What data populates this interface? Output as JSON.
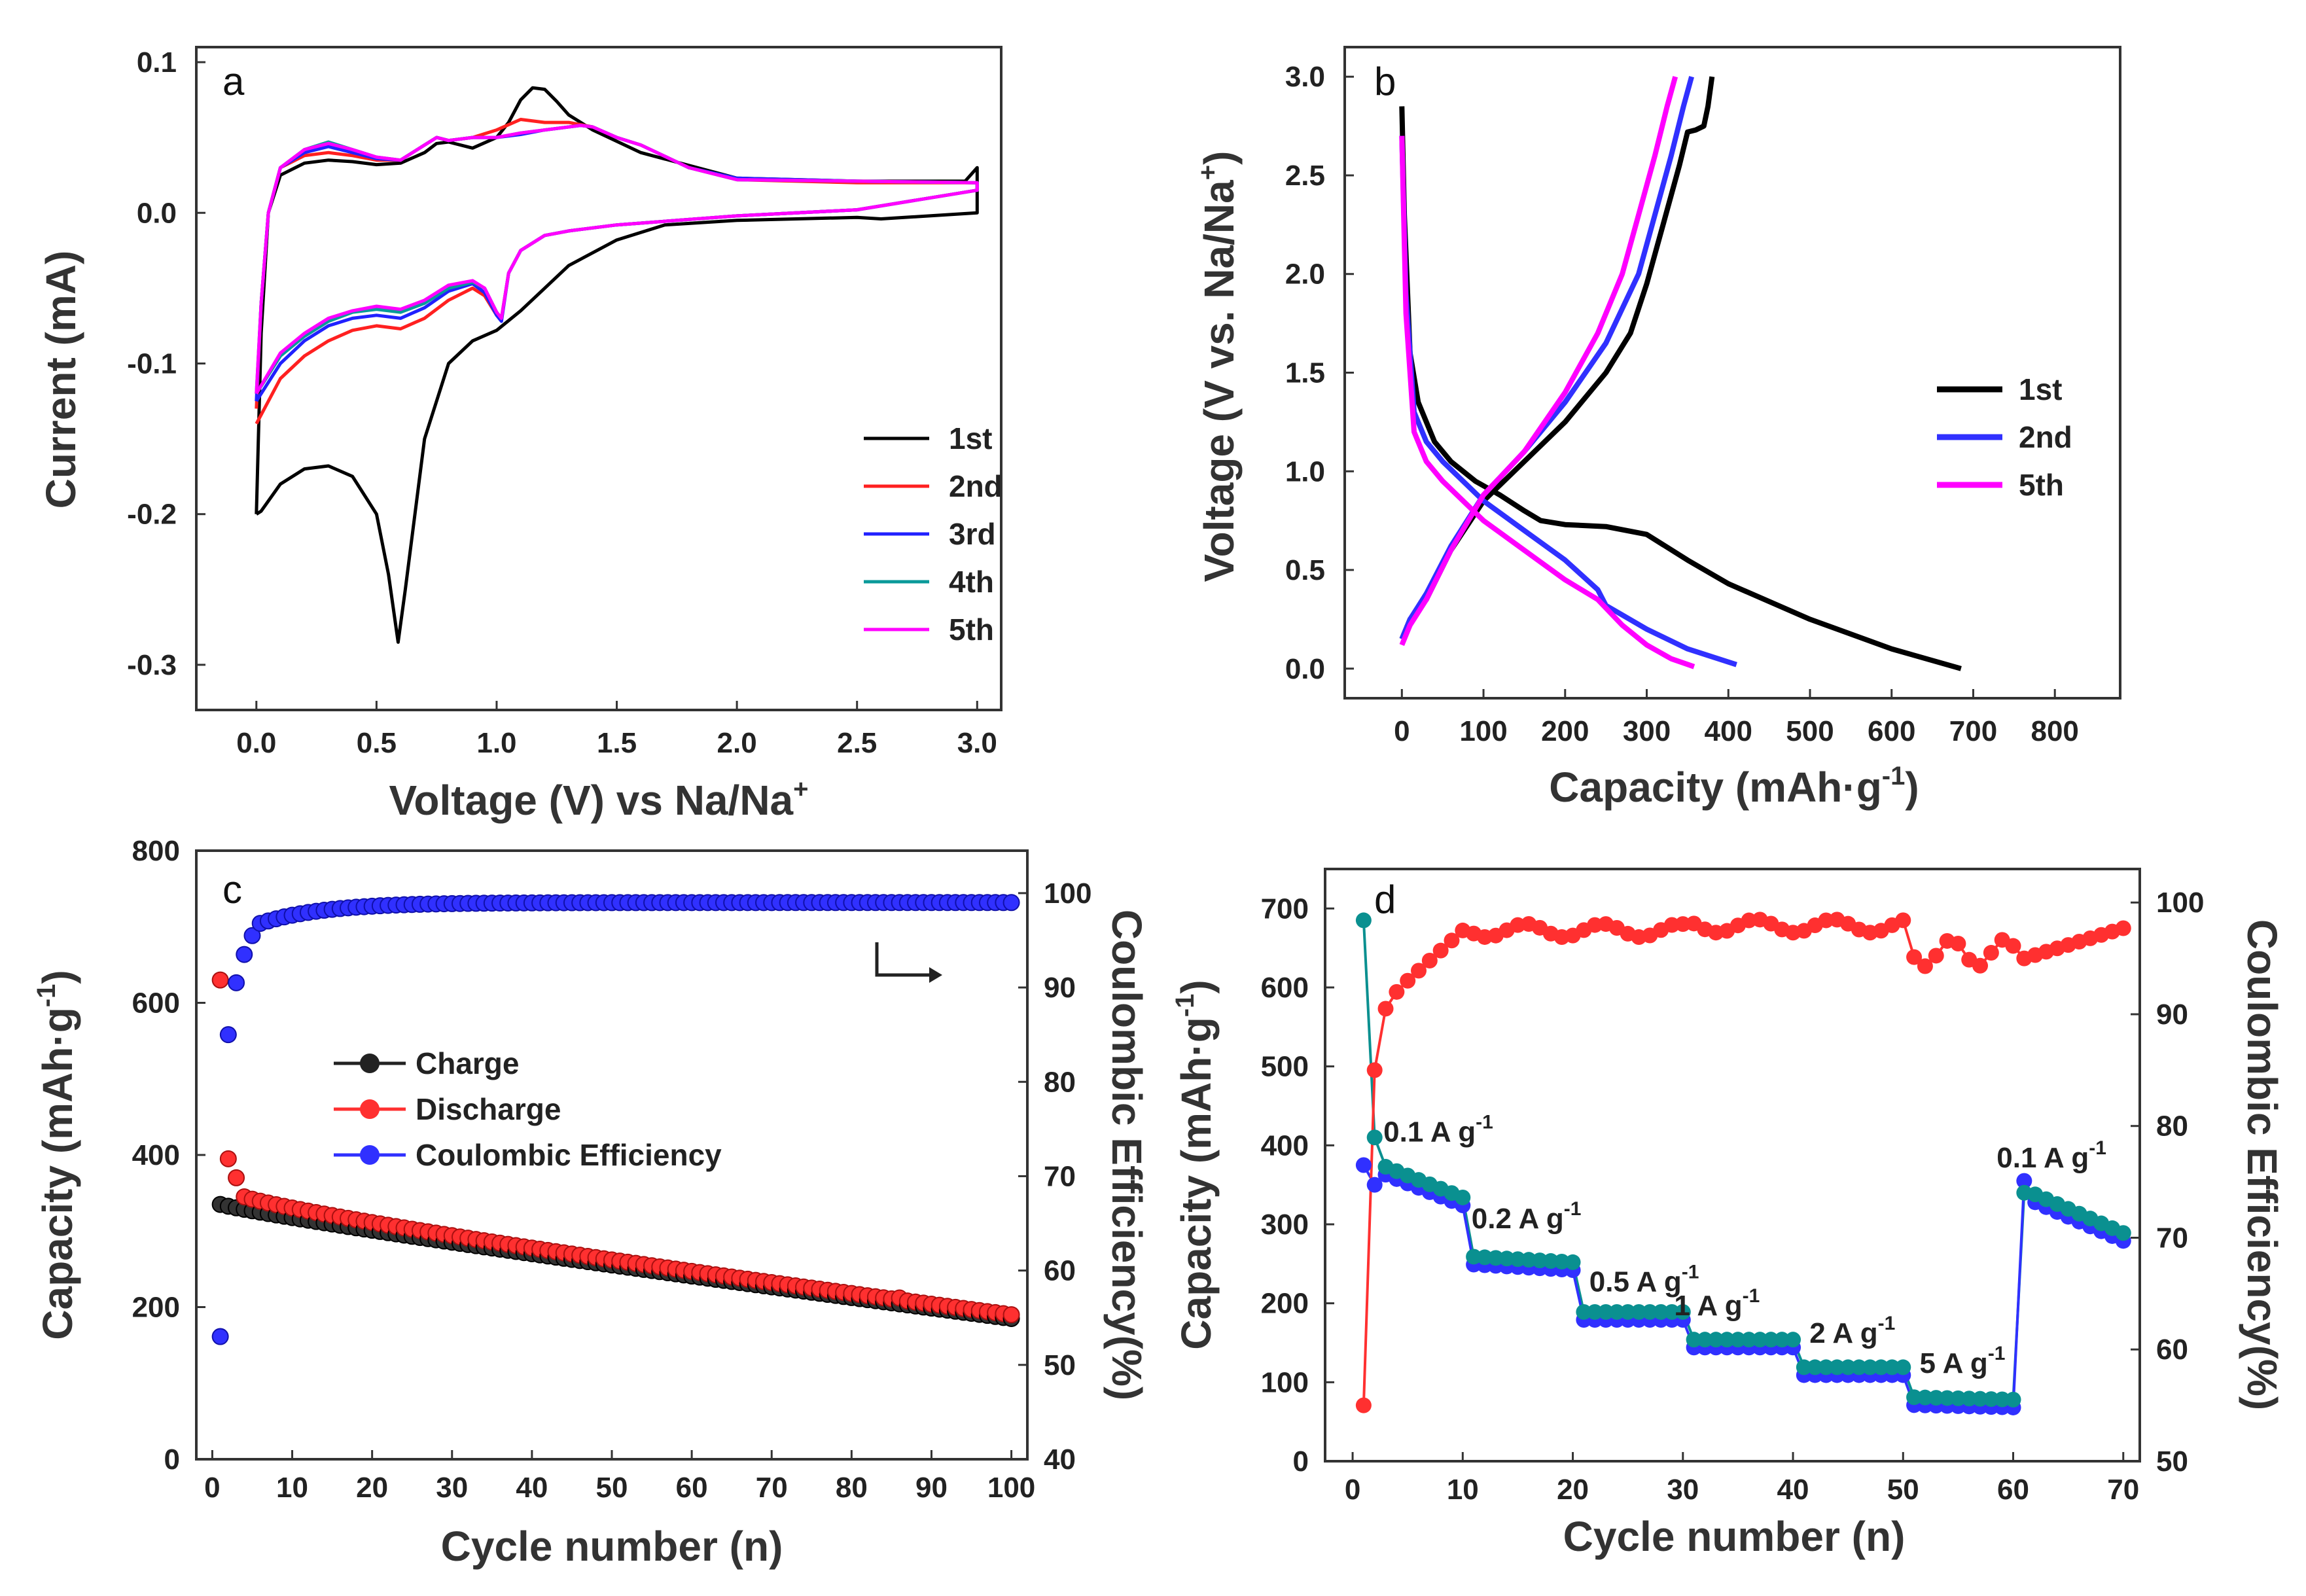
{
  "chart_data": [
    {
      "id": "a",
      "type": "line",
      "panel_label": "a",
      "xlabel": "Voltage (V) vs Na/Na",
      "xlabel_sup": "+",
      "ylabel": "Current (mA)",
      "xlim": [
        -0.25,
        3.1
      ],
      "ylim": [
        -0.33,
        0.11
      ],
      "xticks": [
        "0.0",
        "0.5",
        "1.0",
        "1.5",
        "2.0",
        "2.5",
        "3.0"
      ],
      "yticks": [
        "0.1",
        "0.0",
        "-0.1",
        "-0.2",
        "-0.3"
      ],
      "legend_position": "lower-right",
      "series": [
        {
          "name": "1st",
          "color": "#000000",
          "x": [
            0.0,
            0.02,
            0.1,
            0.2,
            0.3,
            0.4,
            0.5,
            0.55,
            0.59,
            0.62,
            0.7,
            0.8,
            0.9,
            1.0,
            1.1,
            1.2,
            1.3,
            1.5,
            1.7,
            2.0,
            2.5,
            2.6,
            3.0,
            3.0,
            2.95,
            2.5,
            2.0,
            1.6,
            1.4,
            1.3,
            1.25,
            1.2,
            1.15,
            1.1,
            1.05,
            1.0,
            0.9,
            0.8,
            0.75,
            0.7,
            0.6,
            0.5,
            0.4,
            0.3,
            0.2,
            0.1,
            0.05,
            0.02,
            0.0
          ],
          "y": [
            -0.2,
            -0.198,
            -0.18,
            -0.17,
            -0.168,
            -0.175,
            -0.2,
            -0.24,
            -0.285,
            -0.25,
            -0.15,
            -0.1,
            -0.085,
            -0.078,
            -0.065,
            -0.05,
            -0.035,
            -0.018,
            -0.008,
            -0.005,
            -0.003,
            -0.004,
            0.0,
            0.03,
            0.021,
            0.021,
            0.023,
            0.04,
            0.055,
            0.065,
            0.074,
            0.082,
            0.083,
            0.075,
            0.06,
            0.05,
            0.043,
            0.047,
            0.046,
            0.04,
            0.033,
            0.032,
            0.034,
            0.035,
            0.033,
            0.025,
            0.0,
            -0.08,
            -0.2
          ]
        },
        {
          "name": "2nd",
          "color": "#ff2020",
          "x": [
            0.0,
            0.1,
            0.2,
            0.3,
            0.4,
            0.5,
            0.6,
            0.7,
            0.8,
            0.9,
            0.95,
            1.0,
            1.02,
            1.05,
            1.1,
            1.2,
            1.3,
            1.5,
            2.0,
            2.5,
            3.0,
            3.0,
            2.5,
            2.0,
            1.8,
            1.6,
            1.5,
            1.4,
            1.3,
            1.2,
            1.1,
            1.0,
            0.9,
            0.8,
            0.75,
            0.7,
            0.6,
            0.5,
            0.4,
            0.3,
            0.2,
            0.1,
            0.05,
            0.02,
            0.0
          ],
          "y": [
            -0.14,
            -0.11,
            -0.095,
            -0.085,
            -0.078,
            -0.075,
            -0.077,
            -0.07,
            -0.058,
            -0.05,
            -0.055,
            -0.068,
            -0.07,
            -0.04,
            -0.025,
            -0.015,
            -0.012,
            -0.008,
            -0.002,
            0.002,
            0.015,
            0.02,
            0.02,
            0.022,
            0.03,
            0.045,
            0.05,
            0.057,
            0.06,
            0.06,
            0.062,
            0.055,
            0.05,
            0.048,
            0.05,
            0.045,
            0.035,
            0.035,
            0.038,
            0.04,
            0.038,
            0.03,
            0.0,
            -0.06,
            -0.13
          ]
        },
        {
          "name": "3rd",
          "color": "#2020ff",
          "x": [
            0.0,
            0.1,
            0.2,
            0.3,
            0.4,
            0.5,
            0.6,
            0.7,
            0.8,
            0.9,
            0.95,
            1.0,
            1.02,
            1.05,
            1.1,
            1.2,
            1.3,
            1.5,
            2.0,
            2.5,
            3.0,
            3.0,
            2.5,
            2.0,
            1.8,
            1.6,
            1.5,
            1.4,
            1.35,
            1.2,
            1.1,
            1.0,
            0.9,
            0.8,
            0.75,
            0.7,
            0.6,
            0.5,
            0.4,
            0.3,
            0.2,
            0.1,
            0.05,
            0.02,
            0.0
          ],
          "y": [
            -0.125,
            -0.1,
            -0.085,
            -0.075,
            -0.07,
            -0.068,
            -0.07,
            -0.063,
            -0.052,
            -0.047,
            -0.053,
            -0.068,
            -0.072,
            -0.04,
            -0.025,
            -0.015,
            -0.012,
            -0.008,
            -0.002,
            0.002,
            0.015,
            0.02,
            0.021,
            0.023,
            0.03,
            0.045,
            0.05,
            0.057,
            0.058,
            0.055,
            0.052,
            0.05,
            0.05,
            0.048,
            0.05,
            0.045,
            0.035,
            0.036,
            0.04,
            0.044,
            0.04,
            0.03,
            0.0,
            -0.06,
            -0.125
          ]
        },
        {
          "name": "4th",
          "color": "#0a9a9a",
          "x": [
            0.0,
            0.1,
            0.2,
            0.3,
            0.4,
            0.5,
            0.6,
            0.7,
            0.8,
            0.9,
            0.95,
            1.0,
            1.02,
            1.05,
            1.1,
            1.2,
            1.3,
            1.5,
            2.0,
            2.5,
            3.0,
            3.0,
            2.5,
            2.0,
            1.8,
            1.6,
            1.5,
            1.4,
            1.35,
            1.2,
            1.1,
            1.0,
            0.9,
            0.8,
            0.75,
            0.7,
            0.6,
            0.5,
            0.4,
            0.3,
            0.2,
            0.1,
            0.05,
            0.02,
            0.0
          ],
          "y": [
            -0.12,
            -0.095,
            -0.082,
            -0.072,
            -0.066,
            -0.064,
            -0.066,
            -0.06,
            -0.05,
            -0.046,
            -0.05,
            -0.066,
            -0.07,
            -0.04,
            -0.025,
            -0.015,
            -0.012,
            -0.008,
            -0.002,
            0.002,
            0.015,
            0.02,
            0.021,
            0.022,
            0.03,
            0.045,
            0.05,
            0.057,
            0.058,
            0.055,
            0.053,
            0.05,
            0.05,
            0.048,
            0.05,
            0.045,
            0.035,
            0.037,
            0.042,
            0.047,
            0.042,
            0.03,
            0.0,
            -0.06,
            -0.12
          ]
        },
        {
          "name": "5th",
          "color": "#ff00ff",
          "x": [
            0.0,
            0.1,
            0.2,
            0.3,
            0.4,
            0.5,
            0.6,
            0.7,
            0.8,
            0.9,
            0.95,
            1.0,
            1.02,
            1.05,
            1.1,
            1.2,
            1.3,
            1.5,
            2.0,
            2.5,
            3.0,
            3.0,
            2.5,
            2.0,
            1.8,
            1.6,
            1.5,
            1.4,
            1.35,
            1.2,
            1.1,
            1.0,
            0.9,
            0.8,
            0.75,
            0.7,
            0.6,
            0.5,
            0.4,
            0.3,
            0.2,
            0.1,
            0.05,
            0.02,
            0.0
          ],
          "y": [
            -0.12,
            -0.093,
            -0.08,
            -0.07,
            -0.065,
            -0.062,
            -0.064,
            -0.058,
            -0.048,
            -0.045,
            -0.05,
            -0.066,
            -0.07,
            -0.04,
            -0.025,
            -0.015,
            -0.012,
            -0.008,
            -0.002,
            0.002,
            0.015,
            0.02,
            0.021,
            0.022,
            0.03,
            0.045,
            0.05,
            0.057,
            0.058,
            0.055,
            0.053,
            0.05,
            0.05,
            0.048,
            0.05,
            0.045,
            0.035,
            0.037,
            0.042,
            0.046,
            0.042,
            0.03,
            0.0,
            -0.06,
            -0.12
          ]
        }
      ]
    },
    {
      "id": "b",
      "type": "line",
      "panel_label": "b",
      "xlabel": "Capacity (mAh·g",
      "xlabel_sup": "-1",
      "xlabel_end": ")",
      "ylabel": "Voltage (V vs. Na/Na",
      "ylabel_sup": "+",
      "ylabel_end": ")",
      "xlim": [
        -70,
        880
      ],
      "ylim": [
        -0.15,
        3.15
      ],
      "xticks": [
        "0",
        "100",
        "200",
        "300",
        "400",
        "500",
        "600",
        "700",
        "800"
      ],
      "yticks": [
        "0.0",
        "0.5",
        "1.0",
        "1.5",
        "2.0",
        "2.5",
        "3.0"
      ],
      "legend_position": "center-right",
      "series": [
        {
          "name": "1st",
          "color": "#000000",
          "discharge_x": [
            0,
            3,
            10,
            20,
            40,
            60,
            90,
            120,
            150,
            170,
            200,
            250,
            300,
            350,
            400,
            500,
            600,
            685
          ],
          "discharge_y": [
            2.85,
            2.3,
            1.6,
            1.35,
            1.15,
            1.05,
            0.95,
            0.88,
            0.8,
            0.75,
            0.73,
            0.72,
            0.68,
            0.55,
            0.43,
            0.25,
            0.1,
            0.0
          ],
          "charge_x": [
            0,
            10,
            30,
            60,
            100,
            150,
            200,
            250,
            280,
            300,
            320,
            340,
            350,
            360,
            370,
            375,
            380
          ],
          "charge_y": [
            0.15,
            0.25,
            0.35,
            0.6,
            0.85,
            1.05,
            1.25,
            1.5,
            1.7,
            1.95,
            2.25,
            2.55,
            2.72,
            2.73,
            2.75,
            2.85,
            3.0
          ]
        },
        {
          "name": "2nd",
          "color": "#3030ff",
          "discharge_x": [
            0,
            5,
            15,
            30,
            50,
            100,
            150,
            200,
            240,
            250,
            300,
            350,
            410
          ],
          "discharge_y": [
            2.7,
            1.9,
            1.3,
            1.15,
            1.05,
            0.85,
            0.7,
            0.55,
            0.4,
            0.32,
            0.2,
            0.1,
            0.02
          ],
          "charge_x": [
            0,
            10,
            30,
            60,
            100,
            150,
            200,
            250,
            290,
            310,
            330,
            345,
            355
          ],
          "charge_y": [
            0.15,
            0.25,
            0.38,
            0.62,
            0.88,
            1.1,
            1.35,
            1.65,
            2.0,
            2.3,
            2.6,
            2.85,
            3.0
          ]
        },
        {
          "name": "5th",
          "color": "#ff00ff",
          "discharge_x": [
            0,
            5,
            15,
            30,
            50,
            100,
            150,
            200,
            240,
            270,
            300,
            330,
            358
          ],
          "discharge_y": [
            2.7,
            1.8,
            1.2,
            1.05,
            0.95,
            0.75,
            0.6,
            0.45,
            0.35,
            0.22,
            0.12,
            0.05,
            0.01
          ],
          "charge_x": [
            0,
            10,
            30,
            60,
            100,
            150,
            200,
            240,
            270,
            290,
            310,
            325,
            335
          ],
          "charge_y": [
            0.12,
            0.22,
            0.35,
            0.6,
            0.88,
            1.1,
            1.4,
            1.7,
            2.0,
            2.3,
            2.6,
            2.85,
            3.0
          ]
        }
      ]
    },
    {
      "id": "c",
      "type": "scatter",
      "panel_label": "c",
      "xlabel": "Cycle number (n)",
      "ylabel": "Capacity (mAh·g",
      "ylabel_sup": "-1",
      "ylabel_end": ")",
      "y2label": "Coulombic Efficiency(%)",
      "xlim": [
        -2,
        102
      ],
      "ylim": [
        0,
        800
      ],
      "y2lim": [
        40,
        104.5
      ],
      "xticks": [
        "0",
        "10",
        "20",
        "30",
        "40",
        "50",
        "60",
        "70",
        "80",
        "90",
        "100"
      ],
      "yticks": [
        "0",
        "200",
        "400",
        "600",
        "800"
      ],
      "y2ticks": [
        "40",
        "50",
        "60",
        "70",
        "80",
        "90",
        "100"
      ],
      "legend_position": "center-left",
      "series": [
        {
          "name": "Charge",
          "color": "#222222",
          "axis": "left",
          "first": 335,
          "end": 185,
          "start_n": 1
        },
        {
          "name": "Discharge",
          "color": "#ff3030",
          "axis": "left",
          "first_points": [
            630,
            395,
            370
          ],
          "end": 190,
          "start_n": 1
        },
        {
          "name": "Coulombic Efficiency",
          "color": "#3030ff",
          "axis": "right",
          "first_points": [
            53,
            85,
            90.5,
            93.5,
            95.5
          ],
          "end": 99,
          "start_n": 1
        }
      ]
    },
    {
      "id": "d",
      "type": "scatter",
      "panel_label": "d",
      "xlabel": "Cycle number (n)",
      "ylabel": "Capacity (mAh·g",
      "ylabel_sup": "-1",
      "ylabel_end": ")",
      "y2label": "Coulombic Efficiency(%)",
      "xlim": [
        -2.5,
        71.5
      ],
      "ylim": [
        0,
        750
      ],
      "y2lim": [
        50,
        103
      ],
      "xticks": [
        "0",
        "10",
        "20",
        "30",
        "40",
        "50",
        "60",
        "70"
      ],
      "yticks": [
        "0",
        "100",
        "200",
        "300",
        "400",
        "500",
        "600",
        "700"
      ],
      "y2ticks": [
        "50",
        "60",
        "70",
        "80",
        "90",
        "100"
      ],
      "rate_labels": [
        {
          "text": "0.1 A g",
          "sup": "-1",
          "x": 2.8,
          "y": 405
        },
        {
          "text": "0.2 A g",
          "sup": "-1",
          "x": 10.8,
          "y": 295
        },
        {
          "text": "0.5 A g",
          "sup": "-1",
          "x": 21.5,
          "y": 215
        },
        {
          "text": "1 A g",
          "sup": "-1",
          "x": 29.2,
          "y": 185
        },
        {
          "text": "2 A g",
          "sup": "-1",
          "x": 41.5,
          "y": 150
        },
        {
          "text": "5 A g",
          "sup": "-1",
          "x": 51.5,
          "y": 112
        },
        {
          "text": "0.1 A g",
          "sup": "-1",
          "x": 58.5,
          "y": 372
        }
      ],
      "rate_steps": [
        {
          "from": 1,
          "to": 10,
          "rate": "0.1 A g-1"
        },
        {
          "from": 11,
          "to": 20,
          "rate": "0.2 A g-1"
        },
        {
          "from": 21,
          "to": 30,
          "rate": "0.5 A g-1"
        },
        {
          "from": 31,
          "to": 40,
          "rate": "1 A g-1"
        },
        {
          "from": 41,
          "to": 50,
          "rate": "2 A g-1"
        },
        {
          "from": 51,
          "to": 60,
          "rate": "5 A g-1"
        },
        {
          "from": 61,
          "to": 70,
          "rate": "0.1 A g-1"
        }
      ],
      "series": [
        {
          "name": "Charge",
          "color": "#3030ff",
          "axis": "left"
        },
        {
          "name": "Discharge",
          "color": "#0a9090",
          "axis": "left"
        },
        {
          "name": "Coulombic Efficiency",
          "color": "#ff3030",
          "axis": "right"
        }
      ]
    }
  ]
}
